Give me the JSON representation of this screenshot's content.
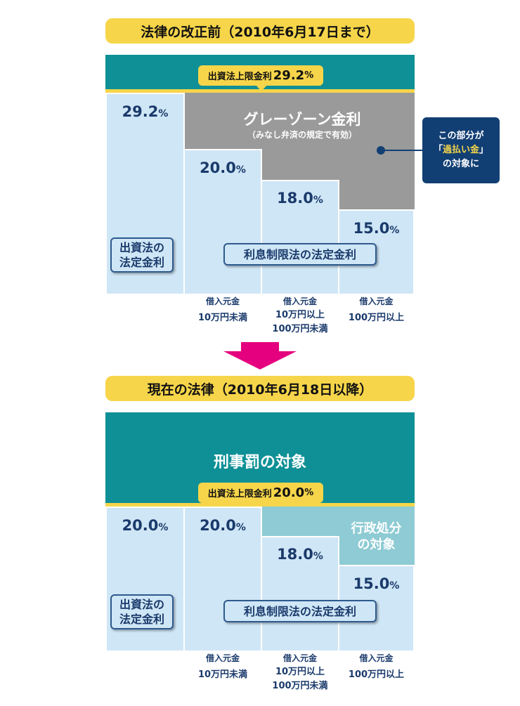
{
  "before": {
    "title": "法律の改正前（2010年6月17日まで）",
    "limit_badge": {
      "label": "出資法上限金利",
      "value": "29.2",
      "unit": "%"
    },
    "col1": {
      "value": "29.2",
      "unit": "%"
    },
    "col2": {
      "value": "20.0",
      "unit": "%"
    },
    "col3": {
      "value": "18.0",
      "unit": "%"
    },
    "col4": {
      "value": "15.0",
      "unit": "%"
    },
    "gray_zone": {
      "title": "グレーゾーン金利",
      "subtitle": "（みなし弁済の規定で有効）"
    },
    "callout": {
      "line1": "この部分が",
      "line2_open": "「",
      "line2_hl": "過払い金",
      "line2_close": "」",
      "line3": "の対象に"
    },
    "box_investment": {
      "line1": "出資法の",
      "line2": "法定金利"
    },
    "box_interest": "利息制限法の法定金利",
    "footer": [
      {
        "line1": "借入元金",
        "line2": "10万円未満",
        "line3": ""
      },
      {
        "line1": "借入元金",
        "line2": "10万円以上",
        "line3": "100万円未満"
      },
      {
        "line1": "借入元金",
        "line2": "100万円以上",
        "line3": ""
      }
    ]
  },
  "after": {
    "title": "現在の法律（2010年6月18日以降）",
    "criminal": "刑事罰の対象",
    "limit_badge": {
      "label": "出資法上限金利",
      "value": "20.0",
      "unit": "%"
    },
    "col1": {
      "value": "20.0",
      "unit": "%"
    },
    "col2": {
      "value": "20.0",
      "unit": "%"
    },
    "col3": {
      "value": "18.0",
      "unit": "%"
    },
    "col4": {
      "value": "15.0",
      "unit": "%"
    },
    "admin": {
      "line1": "行政処分",
      "line2": "の対象"
    },
    "box_investment": {
      "line1": "出資法の",
      "line2": "法定金利"
    },
    "box_interest": "利息制限法の法定金利",
    "footer": [
      {
        "line1": "借入元金",
        "line2": "10万円未満",
        "line3": ""
      },
      {
        "line1": "借入元金",
        "line2": "10万円以上",
        "line3": "100万円未満"
      },
      {
        "line1": "借入元金",
        "line2": "100万円以上",
        "line3": ""
      }
    ]
  },
  "colors": {
    "teal": "#0e9096",
    "yellow": "#f6d54a",
    "light_blue": "#cfe6f6",
    "gray": "#9a9a9a",
    "navy": "#123f73",
    "magenta": "#e4007f",
    "admin_teal": "#8ecbd4"
  }
}
